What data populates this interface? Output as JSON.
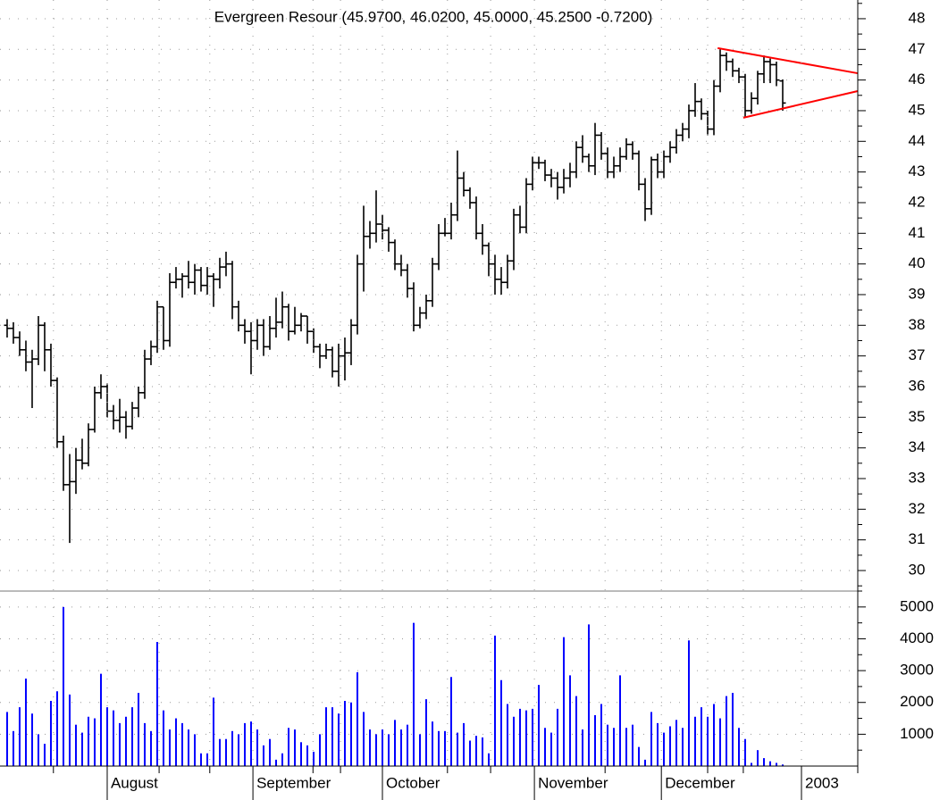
{
  "chart_data": [
    {
      "type": "ohlc",
      "title": "Evergreen Resour (45.9700, 46.0200, 45.0000, 45.2500 -0.7200)",
      "color": "#000000",
      "xlim": [
        -1.14,
        136
      ],
      "ylim": [
        29.33,
        48.61
      ],
      "yticks": [
        30,
        31,
        32,
        33,
        34,
        35,
        36,
        37,
        38,
        39,
        40,
        41,
        42,
        43,
        44,
        45,
        46,
        47,
        48
      ],
      "yminorticks": [
        29.5,
        30.5,
        31.5,
        32.5,
        33.5,
        34.5,
        35.5,
        36.5,
        37.5,
        38.5,
        39.5,
        40.5,
        41.5,
        42.5,
        43.5,
        44.5,
        45.5,
        46.5,
        47.5,
        48.5
      ],
      "grid": true,
      "open": [
        38.0,
        37.9,
        37.6,
        37.2,
        36.8,
        36.9,
        38.0,
        37.2,
        36.2,
        34.2,
        32.8,
        32.9,
        33.6,
        33.5,
        34.6,
        35.8,
        36.0,
        35.2,
        34.9,
        35.0,
        34.7,
        35.3,
        35.8,
        36.9,
        37.3,
        38.6,
        37.5,
        39.4,
        39.5,
        39.6,
        39.4,
        39.8,
        39.3,
        39.6,
        39.5,
        39.9,
        40.0,
        38.6,
        38.0,
        37.8,
        37.5,
        38.0,
        37.3,
        37.9,
        38.1,
        38.6,
        37.8,
        38.0,
        38.3,
        37.8,
        37.3,
        37.0,
        37.2,
        36.5,
        37.0,
        37.1,
        38.0,
        40.0,
        40.9,
        41.0,
        41.3,
        41.1,
        40.7,
        40.0,
        39.8,
        39.2,
        38.0,
        38.4,
        38.8,
        40.0,
        41.0,
        41.0,
        41.6,
        42.8,
        42.4,
        42.0,
        41.0,
        40.6,
        40.0,
        39.5,
        39.4,
        40.1,
        41.6,
        41.2,
        42.6,
        43.3,
        43.3,
        42.9,
        42.8,
        42.5,
        42.8,
        43.0,
        43.8,
        43.5,
        43.2,
        44.2,
        43.6,
        43.0,
        43.2,
        43.5,
        43.9,
        43.6,
        42.6,
        41.8,
        43.4,
        43.0,
        43.5,
        43.8,
        44.2,
        44.4,
        45.0,
        45.3,
        44.9,
        44.4,
        45.8,
        46.8,
        46.6,
        46.3,
        46.1,
        45.0,
        45.4,
        46.2,
        46.6,
        46.5,
        45.97
      ],
      "high": [
        38.2,
        38.1,
        37.8,
        37.5,
        37.2,
        38.3,
        38.1,
        37.4,
        36.3,
        34.4,
        33.8,
        34.0,
        34.3,
        34.8,
        36.0,
        36.4,
        36.1,
        35.4,
        35.6,
        35.2,
        35.5,
        36.0,
        37.2,
        37.5,
        38.8,
        38.6,
        39.7,
        39.9,
        39.7,
        40.1,
        40.0,
        39.9,
        39.9,
        39.7,
        40.2,
        40.4,
        40.1,
        38.8,
        38.2,
        38.1,
        38.2,
        38.2,
        38.3,
        38.9,
        39.1,
        38.7,
        38.6,
        38.4,
        38.3,
        37.9,
        37.4,
        37.4,
        37.3,
        37.4,
        37.6,
        38.2,
        40.3,
        41.9,
        41.4,
        42.4,
        41.6,
        41.2,
        40.8,
        40.3,
        40.0,
        39.4,
        38.6,
        39.0,
        40.2,
        41.3,
        41.5,
        42.0,
        43.7,
        43.0,
        42.5,
        42.2,
        41.3,
        40.7,
        40.3,
        39.9,
        40.3,
        41.8,
        41.9,
        42.8,
        43.5,
        43.5,
        43.4,
        43.1,
        43.0,
        43.1,
        43.3,
        44.0,
        44.2,
        43.6,
        44.6,
        44.3,
        43.8,
        43.5,
        43.8,
        44.1,
        44.0,
        43.7,
        42.8,
        43.5,
        43.6,
        43.7,
        44.0,
        44.4,
        44.6,
        45.2,
        45.9,
        45.4,
        45.0,
        46.0,
        47.0,
        46.9,
        46.7,
        46.4,
        46.2,
        45.6,
        46.3,
        46.8,
        46.7,
        46.6,
        46.02
      ],
      "low": [
        37.6,
        37.4,
        37.0,
        36.5,
        35.3,
        36.7,
        36.5,
        36.0,
        34.0,
        32.6,
        30.9,
        32.5,
        33.3,
        33.4,
        34.5,
        35.6,
        35.0,
        34.6,
        34.5,
        34.3,
        34.6,
        35.0,
        35.6,
        36.7,
        37.1,
        37.2,
        37.3,
        39.2,
        38.9,
        39.2,
        39.0,
        39.1,
        39.0,
        38.6,
        39.2,
        39.6,
        38.2,
        37.8,
        37.4,
        36.4,
        37.2,
        37.0,
        37.2,
        37.6,
        37.9,
        37.5,
        37.7,
        37.8,
        37.4,
        37.1,
        36.6,
        36.9,
        36.3,
        36.0,
        36.2,
        36.7,
        37.7,
        39.1,
        40.5,
        40.7,
        40.8,
        40.4,
        39.8,
        39.6,
        38.9,
        37.8,
        37.9,
        38.2,
        38.6,
        39.8,
        40.9,
        40.8,
        41.4,
        42.2,
        41.8,
        40.8,
        40.3,
        39.6,
        39.0,
        39.0,
        39.2,
        39.8,
        41.0,
        41.0,
        42.4,
        43.1,
        42.7,
        42.5,
        42.1,
        42.3,
        42.5,
        42.8,
        43.3,
        43.0,
        42.9,
        43.4,
        42.8,
        42.8,
        43.0,
        43.4,
        43.4,
        42.4,
        41.4,
        41.6,
        42.8,
        42.8,
        43.3,
        43.6,
        44.0,
        44.1,
        44.8,
        44.7,
        44.2,
        44.2,
        45.6,
        46.3,
        46.1,
        45.9,
        44.8,
        44.9,
        45.2,
        45.9,
        45.9,
        45.8,
        45.0
      ],
      "close": [
        37.9,
        37.6,
        37.2,
        36.8,
        36.9,
        38.0,
        37.2,
        36.2,
        34.2,
        32.8,
        32.9,
        33.6,
        33.5,
        34.6,
        35.8,
        36.0,
        35.2,
        34.9,
        35.0,
        34.7,
        35.3,
        35.8,
        36.9,
        37.3,
        38.6,
        37.5,
        39.4,
        39.5,
        39.6,
        39.4,
        39.8,
        39.3,
        39.6,
        39.5,
        39.9,
        40.0,
        38.6,
        38.0,
        37.8,
        37.5,
        38.0,
        37.3,
        37.9,
        38.1,
        38.6,
        37.8,
        38.0,
        38.3,
        37.8,
        37.3,
        37.0,
        37.2,
        36.5,
        37.0,
        37.1,
        38.0,
        40.0,
        40.9,
        41.0,
        41.3,
        41.1,
        40.7,
        40.0,
        39.8,
        39.2,
        38.0,
        38.4,
        38.8,
        40.0,
        41.0,
        41.0,
        41.6,
        42.8,
        42.4,
        42.0,
        41.0,
        40.6,
        40.0,
        39.5,
        39.4,
        40.1,
        41.6,
        41.2,
        42.6,
        43.3,
        43.3,
        42.9,
        42.8,
        42.5,
        42.8,
        43.0,
        43.8,
        43.5,
        43.2,
        44.2,
        43.6,
        43.0,
        43.2,
        43.5,
        43.9,
        43.6,
        42.6,
        41.8,
        43.4,
        43.0,
        43.5,
        43.8,
        44.2,
        44.4,
        45.0,
        45.3,
        44.9,
        44.4,
        45.8,
        46.8,
        46.6,
        46.3,
        46.1,
        45.0,
        45.4,
        46.2,
        46.6,
        46.5,
        46.0,
        45.25
      ],
      "trendlines": [
        {
          "color": "#ff0000",
          "x": [
            113.6,
            136
          ],
          "y": [
            47.04,
            46.22
          ]
        },
        {
          "color": "#ff0000",
          "x": [
            117.7,
            136
          ],
          "y": [
            44.77,
            45.64
          ]
        }
      ]
    },
    {
      "type": "bar",
      "color": "#0000ff",
      "xlim": [
        -1.14,
        136
      ],
      "ylim": [
        0,
        5500
      ],
      "yticks": [
        1000,
        2000,
        3000,
        4000,
        5000
      ],
      "yminorticks": [
        500,
        1500,
        2500,
        3500,
        4500,
        5500
      ],
      "grid": true,
      "xticks": [
        {
          "value": 16,
          "label": "August"
        },
        {
          "value": 39.3,
          "label": "September"
        },
        {
          "value": 60,
          "label": "October"
        },
        {
          "value": 84.3,
          "label": "November"
        },
        {
          "value": 104.6,
          "label": "December"
        },
        {
          "value": 127,
          "label": "2003"
        }
      ],
      "xminorticks": [
        7.4,
        24.3,
        32.4,
        48.9,
        53.3,
        70.4,
        77.3,
        95.6,
        112,
        117.7,
        136
      ],
      "values": [
        1700,
        1100,
        1850,
        2750,
        1650,
        1000,
        700,
        2050,
        2350,
        5000,
        2250,
        1300,
        1050,
        1550,
        1500,
        2900,
        1850,
        1750,
        1350,
        1550,
        1850,
        2300,
        1350,
        1100,
        3900,
        1750,
        1150,
        1500,
        1350,
        1150,
        1000,
        400,
        400,
        2150,
        850,
        850,
        1100,
        1000,
        1350,
        1400,
        1150,
        650,
        850,
        200,
        400,
        1200,
        1150,
        750,
        650,
        450,
        1000,
        1850,
        1850,
        1650,
        2050,
        2000,
        2950,
        1700,
        1150,
        1000,
        1150,
        1000,
        1450,
        1150,
        1300,
        4500,
        1000,
        2100,
        1400,
        1100,
        1100,
        2800,
        1050,
        1350,
        800,
        950,
        900,
        400,
        4100,
        2700,
        1950,
        1550,
        1800,
        1750,
        1800,
        2550,
        1200,
        1050,
        1800,
        4050,
        2850,
        2200,
        1150,
        4450,
        1600,
        1950,
        1300,
        1200,
        2850,
        1200,
        1300,
        600,
        200,
        1700,
        1350,
        1050,
        1250,
        1450,
        1200,
        3950,
        1550,
        1850,
        1550,
        1950,
        1500,
        2200,
        2300,
        1200,
        850,
        100,
        500,
        250,
        150,
        100,
        50
      ]
    }
  ]
}
